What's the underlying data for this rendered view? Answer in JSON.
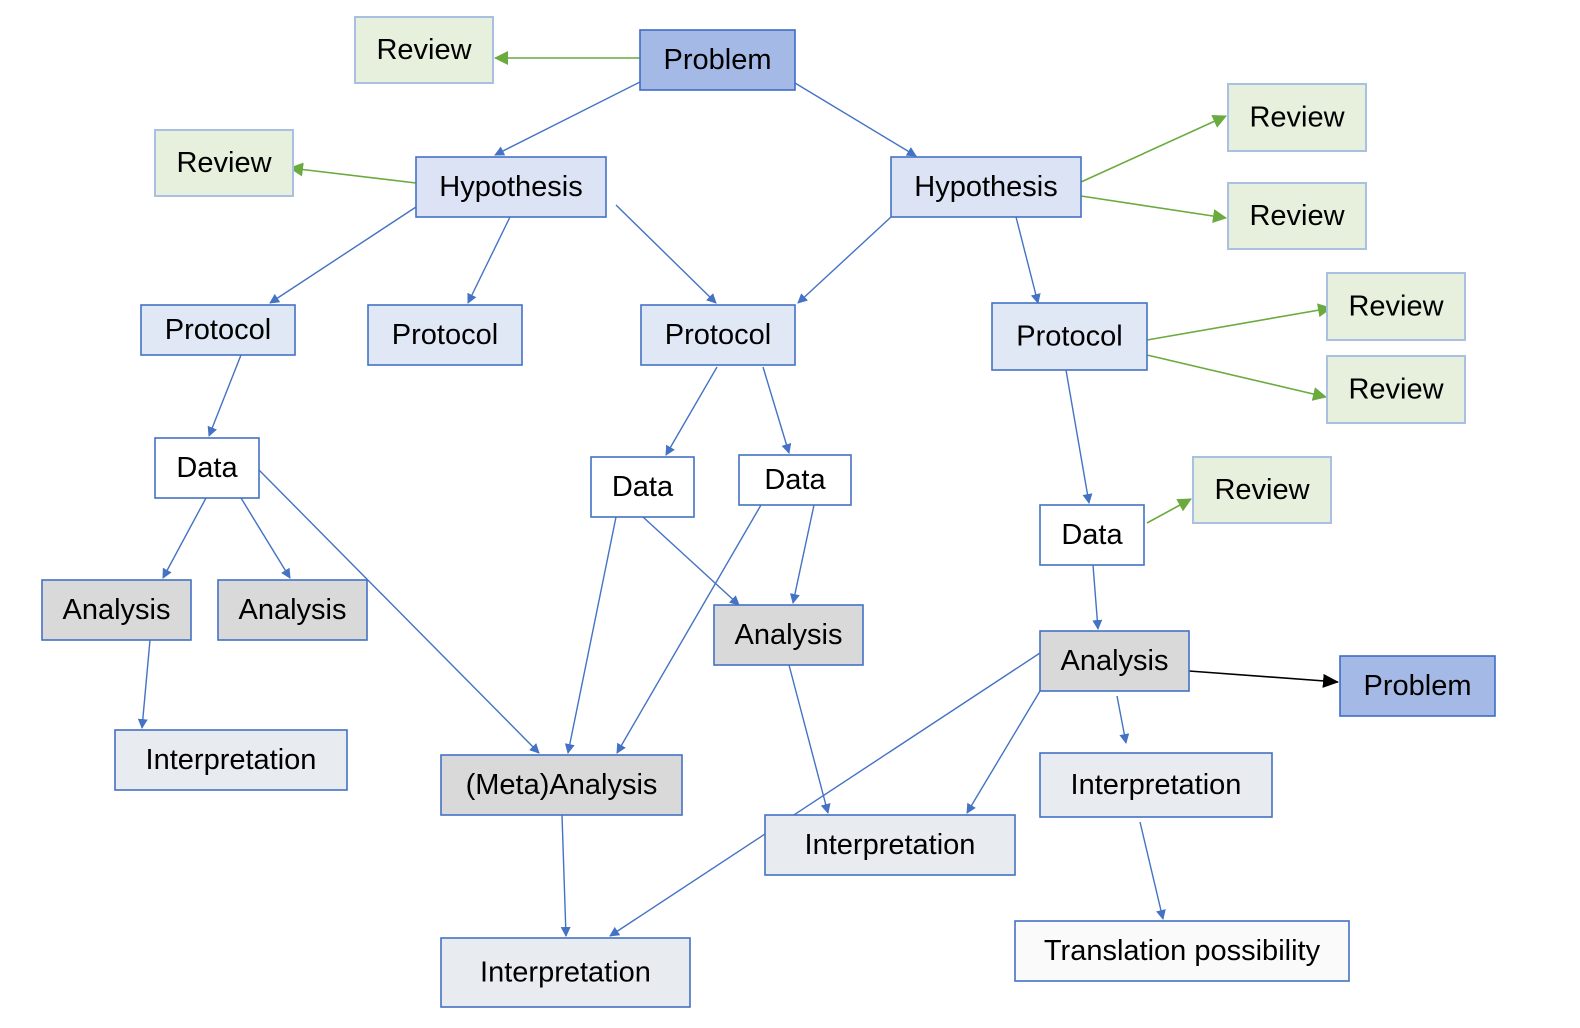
{
  "nodes": {
    "problem_top": {
      "label": "Problem",
      "kind": "problem"
    },
    "review_top": {
      "label": "Review",
      "kind": "review"
    },
    "review_left": {
      "label": "Review",
      "kind": "review"
    },
    "hypothesis_left": {
      "label": "Hypothesis",
      "kind": "hypothesis"
    },
    "hypothesis_right": {
      "label": "Hypothesis",
      "kind": "hypothesis"
    },
    "review_r1": {
      "label": "Review",
      "kind": "review"
    },
    "review_r2": {
      "label": "Review",
      "kind": "review"
    },
    "protocol_1": {
      "label": "Protocol",
      "kind": "protocol"
    },
    "protocol_2": {
      "label": "Protocol",
      "kind": "protocol"
    },
    "protocol_3": {
      "label": "Protocol",
      "kind": "protocol"
    },
    "protocol_4": {
      "label": "Protocol",
      "kind": "protocol"
    },
    "review_r3": {
      "label": "Review",
      "kind": "review"
    },
    "review_r4": {
      "label": "Review",
      "kind": "review"
    },
    "data_1": {
      "label": "Data",
      "kind": "data"
    },
    "data_2": {
      "label": "Data",
      "kind": "data"
    },
    "data_3": {
      "label": "Data",
      "kind": "data"
    },
    "data_4": {
      "label": "Data",
      "kind": "data"
    },
    "review_r5": {
      "label": "Review",
      "kind": "review"
    },
    "analysis_1": {
      "label": "Analysis",
      "kind": "analysis"
    },
    "analysis_2": {
      "label": "Analysis",
      "kind": "analysis"
    },
    "analysis_3": {
      "label": "Analysis",
      "kind": "analysis"
    },
    "analysis_4": {
      "label": "Analysis",
      "kind": "analysis"
    },
    "problem_bottom": {
      "label": "Problem",
      "kind": "problem"
    },
    "interpretation_1": {
      "label": "Interpretation",
      "kind": "interpretation"
    },
    "meta_analysis": {
      "label": "(Meta)Analysis",
      "kind": "analysis"
    },
    "interpretation_2": {
      "label": "Interpretation",
      "kind": "interpretation"
    },
    "interpretation_3": {
      "label": "Interpretation",
      "kind": "interpretation"
    },
    "interpretation_4": {
      "label": "Interpretation",
      "kind": "interpretation"
    },
    "translation": {
      "label": "Translation possibility",
      "kind": "translation"
    }
  },
  "edges": [
    {
      "from": "problem_top",
      "to": "review_top",
      "type": "review"
    },
    {
      "from": "problem_top",
      "to": "hypothesis_left",
      "type": "flow"
    },
    {
      "from": "problem_top",
      "to": "hypothesis_right",
      "type": "flow"
    },
    {
      "from": "hypothesis_left",
      "to": "review_left",
      "type": "review"
    },
    {
      "from": "hypothesis_right",
      "to": "review_r1",
      "type": "review"
    },
    {
      "from": "hypothesis_right",
      "to": "review_r2",
      "type": "review"
    },
    {
      "from": "hypothesis_left",
      "to": "protocol_1",
      "type": "flow"
    },
    {
      "from": "hypothesis_left",
      "to": "protocol_2",
      "type": "flow"
    },
    {
      "from": "hypothesis_left",
      "to": "protocol_3",
      "type": "flow"
    },
    {
      "from": "hypothesis_right",
      "to": "protocol_3",
      "type": "flow"
    },
    {
      "from": "hypothesis_right",
      "to": "protocol_4",
      "type": "flow"
    },
    {
      "from": "protocol_4",
      "to": "review_r3",
      "type": "review"
    },
    {
      "from": "protocol_4",
      "to": "review_r4",
      "type": "review"
    },
    {
      "from": "protocol_1",
      "to": "data_1",
      "type": "flow"
    },
    {
      "from": "protocol_3",
      "to": "data_2",
      "type": "flow"
    },
    {
      "from": "protocol_3",
      "to": "data_3",
      "type": "flow"
    },
    {
      "from": "protocol_4",
      "to": "data_4",
      "type": "flow"
    },
    {
      "from": "data_4",
      "to": "review_r5",
      "type": "review"
    },
    {
      "from": "data_1",
      "to": "analysis_1",
      "type": "flow"
    },
    {
      "from": "data_1",
      "to": "analysis_2",
      "type": "flow"
    },
    {
      "from": "data_1",
      "to": "meta_analysis",
      "type": "flow"
    },
    {
      "from": "data_2",
      "to": "meta_analysis",
      "type": "flow"
    },
    {
      "from": "data_2",
      "to": "analysis_3",
      "type": "flow"
    },
    {
      "from": "data_3",
      "to": "meta_analysis",
      "type": "flow"
    },
    {
      "from": "data_3",
      "to": "analysis_3",
      "type": "flow"
    },
    {
      "from": "data_4",
      "to": "analysis_4",
      "type": "flow"
    },
    {
      "from": "analysis_4",
      "to": "problem_bottom",
      "type": "feedback"
    },
    {
      "from": "analysis_1",
      "to": "interpretation_1",
      "type": "flow"
    },
    {
      "from": "meta_analysis",
      "to": "interpretation_2",
      "type": "flow"
    },
    {
      "from": "analysis_3",
      "to": "interpretation_3",
      "type": "flow"
    },
    {
      "from": "analysis_4",
      "to": "interpretation_2",
      "type": "flow"
    },
    {
      "from": "analysis_4",
      "to": "interpretation_3",
      "type": "flow"
    },
    {
      "from": "analysis_4",
      "to": "interpretation_4",
      "type": "flow"
    },
    {
      "from": "interpretation_4",
      "to": "translation",
      "type": "flow"
    }
  ],
  "colors": {
    "problem": {
      "fill": "#a4b9e6",
      "stroke": "#3f6cc6"
    },
    "hypothesis": {
      "fill": "#dbe3f4",
      "stroke": "#4472c4"
    },
    "protocol": {
      "fill": "#e1e8f5",
      "stroke": "#4472c4"
    },
    "review": {
      "fill": "#e6f0dd",
      "stroke": "#a9c0e2"
    },
    "data": {
      "fill": "#ffffff",
      "stroke": "#4472c4"
    },
    "analysis": {
      "fill": "#d9d9d9",
      "stroke": "#4472c4"
    },
    "interpretation": {
      "fill": "#e8ebf0",
      "stroke": "#4472c4"
    },
    "translation": {
      "fill": "#fafafa",
      "stroke": "#4472c4"
    },
    "edge_flow": "#4472c4",
    "edge_review": "#6aaa3e",
    "edge_feedback": "#000000"
  }
}
